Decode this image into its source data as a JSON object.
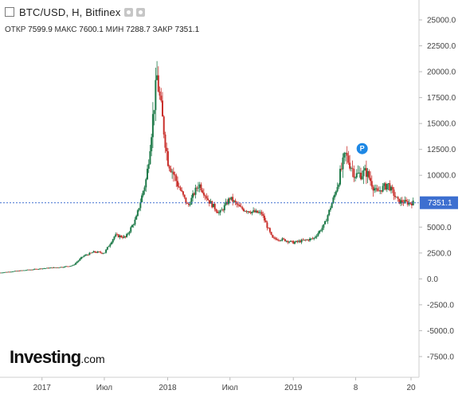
{
  "header": {
    "title": "BTC/USD, H, Bitfinex",
    "ohlc": [
      {
        "label": "ОТКР",
        "value": "7599.9"
      },
      {
        "label": "МАКС",
        "value": "7600.1"
      },
      {
        "label": "МИН",
        "value": "7288.7"
      },
      {
        "label": "ЗАКР",
        "value": "7351.1"
      }
    ]
  },
  "logo": {
    "main": "Investing",
    "tld": ".com"
  },
  "colors": {
    "up": "#1e7a49",
    "down": "#c9302c",
    "price_line": "#3d6fd0",
    "price_label_bg": "#3d6fd0",
    "marker": "#1e88e5"
  },
  "chart_data": {
    "type": "candlestick",
    "xlabel": "",
    "ylabel": "",
    "x_ticks": [
      "2017",
      "Июл",
      "2018",
      "Июл",
      "2019",
      "8",
      "20"
    ],
    "y_ticks": [
      "25000.0",
      "22500.0",
      "20000.0",
      "17500.0",
      "15000.0",
      "12500.0",
      "10000.0",
      "7351.1",
      "5000.0",
      "2500.0",
      "0.0",
      "-2500.0",
      "-5000.0",
      "-7500.0"
    ],
    "ylim": [
      -9500,
      26000
    ],
    "current_price": 7351.1,
    "marker": {
      "label": "P",
      "price": 11500
    },
    "grid": false,
    "series": [
      {
        "x": "2016-09",
        "value": 600
      },
      {
        "x": "2016-12",
        "value": 900
      },
      {
        "x": "2017-01",
        "value": 1000
      },
      {
        "x": "2017-03",
        "value": 1150
      },
      {
        "x": "2017-04",
        "value": 1300
      },
      {
        "x": "2017-05",
        "value": 2200
      },
      {
        "x": "2017-06",
        "value": 2600
      },
      {
        "x": "2017-07",
        "value": 2500
      },
      {
        "x": "2017-08",
        "value": 4200
      },
      {
        "x": "2017-09",
        "value": 4000
      },
      {
        "x": "2017-10",
        "value": 5800
      },
      {
        "x": "2017-11",
        "value": 9800
      },
      {
        "x": "2017-12",
        "value": 19500
      },
      {
        "x": "2018-01",
        "value": 11500
      },
      {
        "x": "2018-02",
        "value": 9000
      },
      {
        "x": "2018-03",
        "value": 7000
      },
      {
        "x": "2018-04",
        "value": 9200
      },
      {
        "x": "2018-05",
        "value": 7500
      },
      {
        "x": "2018-06",
        "value": 6300
      },
      {
        "x": "2018-07",
        "value": 7800
      },
      {
        "x": "2018-08",
        "value": 6800
      },
      {
        "x": "2018-09",
        "value": 6500
      },
      {
        "x": "2018-10",
        "value": 6300
      },
      {
        "x": "2018-11",
        "value": 3900
      },
      {
        "x": "2018-12",
        "value": 3800
      },
      {
        "x": "2019-01",
        "value": 3500
      },
      {
        "x": "2019-03",
        "value": 3900
      },
      {
        "x": "2019-04",
        "value": 5200
      },
      {
        "x": "2019-05",
        "value": 8100
      },
      {
        "x": "2019-06",
        "value": 12000
      },
      {
        "x": "2019-07",
        "value": 10000
      },
      {
        "x": "2019-08",
        "value": 10300
      },
      {
        "x": "2019-09",
        "value": 8300
      },
      {
        "x": "2019-10",
        "value": 9200
      },
      {
        "x": "2019-11",
        "value": 7500
      },
      {
        "x": "2019-12",
        "value": 7351.1
      }
    ]
  }
}
